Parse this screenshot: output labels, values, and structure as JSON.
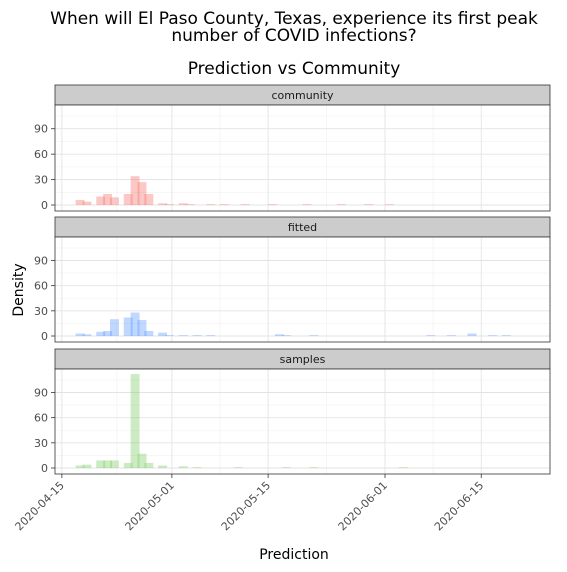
{
  "chart_data": {
    "type": "bar",
    "title": "When will El Paso County, Texas, experience its first peak number of COVID infections?",
    "title_lines": [
      "When will El Paso County, Texas, experience its first peak",
      "number of COVID infections?"
    ],
    "subtitle": "Prediction vs Community",
    "xlabel": "Prediction",
    "ylabel": "Density",
    "x_tick_labels": [
      "2020-04-15",
      "2020-05-01",
      "2020-05-15",
      "2020-06-01",
      "2020-06-15"
    ],
    "x_tick_dates": [
      "2020-04-15",
      "2020-05-01",
      "2020-05-15",
      "2020-06-01",
      "2020-06-15"
    ],
    "y_ticks": [
      0,
      30,
      60,
      90
    ],
    "ylim": [
      0,
      118
    ],
    "xlim": [
      "2020-04-14",
      "2020-06-25"
    ],
    "bin_width_days": 1.3,
    "grid": true,
    "facet_by": "source",
    "series": [
      {
        "name": "community",
        "color": "#f8766d",
        "bins": [
          {
            "x": "2020-04-17",
            "y": 6
          },
          {
            "x": "2020-04-18",
            "y": 4
          },
          {
            "x": "2020-04-20",
            "y": 10
          },
          {
            "x": "2020-04-21",
            "y": 13
          },
          {
            "x": "2020-04-22",
            "y": 9
          },
          {
            "x": "2020-04-24",
            "y": 13
          },
          {
            "x": "2020-04-25",
            "y": 34
          },
          {
            "x": "2020-04-26",
            "y": 27
          },
          {
            "x": "2020-04-27",
            "y": 13
          },
          {
            "x": "2020-04-29",
            "y": 2
          },
          {
            "x": "2020-04-30",
            "y": 1
          },
          {
            "x": "2020-05-02",
            "y": 2
          },
          {
            "x": "2020-05-03",
            "y": 1
          },
          {
            "x": "2020-05-06",
            "y": 1
          },
          {
            "x": "2020-05-08",
            "y": 1
          },
          {
            "x": "2020-05-11",
            "y": 1
          },
          {
            "x": "2020-05-15",
            "y": 1
          },
          {
            "x": "2020-05-20",
            "y": 1
          },
          {
            "x": "2020-05-25",
            "y": 1
          },
          {
            "x": "2020-05-29",
            "y": 1
          },
          {
            "x": "2020-06-01",
            "y": 1
          }
        ]
      },
      {
        "name": "fitted",
        "color": "#619cff",
        "bins": [
          {
            "x": "2020-04-17",
            "y": 3
          },
          {
            "x": "2020-04-18",
            "y": 2
          },
          {
            "x": "2020-04-20",
            "y": 5
          },
          {
            "x": "2020-04-21",
            "y": 6
          },
          {
            "x": "2020-04-22",
            "y": 20
          },
          {
            "x": "2020-04-24",
            "y": 22
          },
          {
            "x": "2020-04-25",
            "y": 28
          },
          {
            "x": "2020-04-26",
            "y": 19
          },
          {
            "x": "2020-04-27",
            "y": 6
          },
          {
            "x": "2020-04-29",
            "y": 4
          },
          {
            "x": "2020-04-30",
            "y": 1
          },
          {
            "x": "2020-05-02",
            "y": 1
          },
          {
            "x": "2020-05-04",
            "y": 1
          },
          {
            "x": "2020-05-06",
            "y": 1
          },
          {
            "x": "2020-05-16",
            "y": 2
          },
          {
            "x": "2020-05-17",
            "y": 1
          },
          {
            "x": "2020-05-21",
            "y": 1
          },
          {
            "x": "2020-06-07",
            "y": 1
          },
          {
            "x": "2020-06-10",
            "y": 1
          },
          {
            "x": "2020-06-13",
            "y": 3
          },
          {
            "x": "2020-06-16",
            "y": 1
          },
          {
            "x": "2020-06-18",
            "y": 1
          }
        ]
      },
      {
        "name": "samples",
        "color": "#7fcc6a",
        "bins": [
          {
            "x": "2020-04-17",
            "y": 3
          },
          {
            "x": "2020-04-18",
            "y": 4
          },
          {
            "x": "2020-04-20",
            "y": 9
          },
          {
            "x": "2020-04-21",
            "y": 9
          },
          {
            "x": "2020-04-22",
            "y": 9
          },
          {
            "x": "2020-04-24",
            "y": 6
          },
          {
            "x": "2020-04-25",
            "y": 112
          },
          {
            "x": "2020-04-26",
            "y": 17
          },
          {
            "x": "2020-04-27",
            "y": 6
          },
          {
            "x": "2020-04-29",
            "y": 3
          },
          {
            "x": "2020-05-02",
            "y": 2
          },
          {
            "x": "2020-05-04",
            "y": 1
          },
          {
            "x": "2020-05-10",
            "y": 1
          },
          {
            "x": "2020-05-17",
            "y": 1
          },
          {
            "x": "2020-05-21",
            "y": 1
          },
          {
            "x": "2020-06-03",
            "y": 1
          }
        ]
      }
    ]
  }
}
